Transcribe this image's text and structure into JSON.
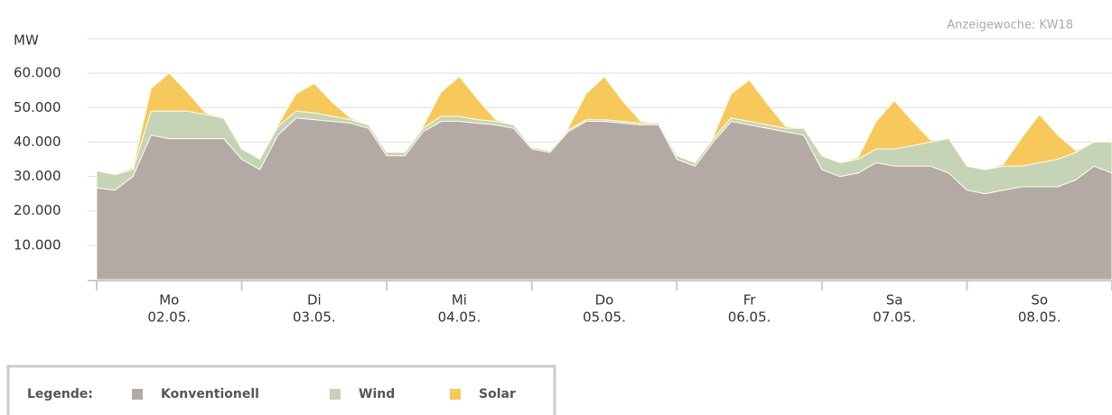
{
  "chart_data": {
    "type": "stacked_area",
    "week_label": "Anzeigewoche: KW18",
    "y_axis_label": "MW",
    "legend_title": "Legende:",
    "x": [
      0,
      3,
      6,
      9,
      12,
      15,
      18,
      21,
      24,
      27,
      30,
      33,
      36,
      39,
      42,
      45,
      48,
      51,
      54,
      57,
      60,
      63,
      66,
      69,
      72,
      75,
      78,
      81,
      84,
      87,
      90,
      93,
      96,
      99,
      102,
      105,
      108,
      111,
      114,
      117,
      120,
      123,
      126,
      129,
      132,
      135,
      138,
      141,
      144,
      147,
      150,
      153,
      156,
      159,
      162,
      165,
      168
    ],
    "xlim": [
      0,
      168
    ],
    "days": [
      {
        "name": "Mo",
        "date": "02.05."
      },
      {
        "name": "Di",
        "date": "03.05."
      },
      {
        "name": "Mi",
        "date": "04.05."
      },
      {
        "name": "Do",
        "date": "05.05."
      },
      {
        "name": "Fr",
        "date": "06.05."
      },
      {
        "name": "Sa",
        "date": "07.05."
      },
      {
        "name": "So",
        "date": "08.05."
      }
    ],
    "ylim": [
      0,
      70000
    ],
    "yticks": [
      {
        "value": 10000,
        "label": "10.000"
      },
      {
        "value": 20000,
        "label": "20.000"
      },
      {
        "value": 30000,
        "label": "30.000"
      },
      {
        "value": 40000,
        "label": "40.000"
      },
      {
        "value": 50000,
        "label": "50.000"
      },
      {
        "value": 60000,
        "label": "60.000"
      }
    ],
    "grid": true,
    "series": [
      {
        "name": "Konventionell",
        "color": "#b3aaa6",
        "values": [
          26700,
          26000,
          30000,
          42000,
          41000,
          41000,
          41000,
          41000,
          35000,
          32000,
          42000,
          47000,
          46500,
          46000,
          45500,
          44000,
          36000,
          36000,
          43000,
          46000,
          46000,
          45500,
          45000,
          44000,
          38000,
          37000,
          43000,
          46000,
          46000,
          45500,
          45000,
          45000,
          35000,
          33000,
          40000,
          46000,
          45000,
          44000,
          43000,
          42000,
          32000,
          30000,
          31000,
          34000,
          33000,
          33000,
          33000,
          31000,
          26000,
          25000,
          26000,
          27000,
          27000,
          27000,
          29000,
          33000,
          31000
        ]
      },
      {
        "name": "Wind",
        "color": "#c5d4b5",
        "values": [
          5000,
          4500,
          2000,
          7000,
          8000,
          8000,
          7000,
          6000,
          3000,
          3000,
          2500,
          2000,
          2000,
          1500,
          1000,
          1000,
          1000,
          1000,
          1000,
          1500,
          1500,
          1000,
          1000,
          1000,
          500,
          500,
          500,
          500,
          500,
          500,
          500,
          500,
          1000,
          1000,
          1000,
          1000,
          1000,
          1000,
          1000,
          2000,
          4000,
          4000,
          4000,
          4000,
          5000,
          6000,
          7000,
          10000,
          7000,
          7000,
          7000,
          6000,
          7000,
          8000,
          8000,
          7000,
          9000
        ]
      },
      {
        "name": "Solar",
        "color": "#f7c85a",
        "values": [
          0,
          0,
          500,
          6500,
          11000,
          5500,
          500,
          0,
          0,
          0,
          500,
          5000,
          8500,
          4000,
          500,
          0,
          0,
          0,
          500,
          7000,
          11500,
          6000,
          500,
          0,
          0,
          0,
          500,
          7500,
          12500,
          6000,
          500,
          0,
          0,
          0,
          500,
          7000,
          12000,
          6000,
          500,
          0,
          0,
          0,
          500,
          8000,
          14000,
          7000,
          500,
          0,
          0,
          0,
          500,
          8000,
          14000,
          7000,
          500,
          0,
          0
        ]
      }
    ]
  }
}
